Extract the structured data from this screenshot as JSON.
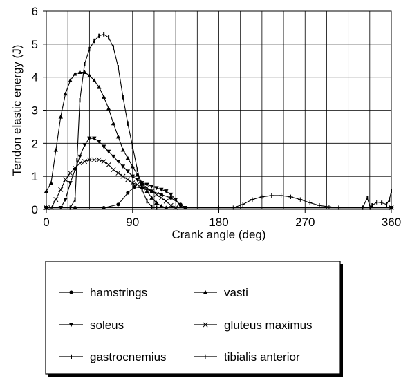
{
  "chart_data": {
    "type": "line",
    "title": "",
    "xlabel": "Crank angle (deg)",
    "ylabel": "Tendon elastic energy (J)",
    "xlim": [
      0,
      360
    ],
    "ylim": [
      0,
      6
    ],
    "xticks": [
      0,
      90,
      180,
      270,
      360
    ],
    "yticks": [
      0,
      1,
      2,
      3,
      4,
      5,
      6
    ],
    "grid": true,
    "legend_position": "bottom",
    "series": [
      {
        "name": "hamstrings",
        "marker": "circle",
        "points": [
          [
            0,
            0.05
          ],
          [
            30,
            0.05
          ],
          [
            60,
            0.05
          ],
          [
            75,
            0.15
          ],
          [
            85,
            0.5
          ],
          [
            92,
            0.68
          ],
          [
            100,
            0.65
          ],
          [
            110,
            0.55
          ],
          [
            120,
            0.45
          ],
          [
            130,
            0.35
          ],
          [
            140,
            0.15
          ],
          [
            145,
            0.05
          ],
          [
            360,
            0.05
          ]
        ]
      },
      {
        "name": "vasti",
        "marker": "triangle-up",
        "points": [
          [
            0,
            0.55
          ],
          [
            5,
            0.8
          ],
          [
            10,
            1.8
          ],
          [
            15,
            2.8
          ],
          [
            20,
            3.5
          ],
          [
            25,
            3.9
          ],
          [
            30,
            4.1
          ],
          [
            35,
            4.15
          ],
          [
            40,
            4.15
          ],
          [
            45,
            4.05
          ],
          [
            50,
            3.9
          ],
          [
            55,
            3.7
          ],
          [
            60,
            3.4
          ],
          [
            65,
            3.05
          ],
          [
            70,
            2.6
          ],
          [
            75,
            2.2
          ],
          [
            80,
            1.8
          ],
          [
            85,
            1.55
          ],
          [
            90,
            1.3
          ],
          [
            95,
            1.05
          ],
          [
            100,
            0.8
          ],
          [
            105,
            0.55
          ],
          [
            110,
            0.35
          ],
          [
            115,
            0.2
          ],
          [
            120,
            0.1
          ],
          [
            125,
            0.05
          ],
          [
            360,
            0.05
          ]
        ]
      },
      {
        "name": "soleus",
        "marker": "triangle-down",
        "points": [
          [
            0,
            0.05
          ],
          [
            15,
            0.05
          ],
          [
            20,
            0.3
          ],
          [
            25,
            0.8
          ],
          [
            30,
            1.2
          ],
          [
            35,
            1.6
          ],
          [
            40,
            1.95
          ],
          [
            45,
            2.15
          ],
          [
            50,
            2.15
          ],
          [
            55,
            2.05
          ],
          [
            60,
            1.9
          ],
          [
            65,
            1.75
          ],
          [
            70,
            1.6
          ],
          [
            75,
            1.45
          ],
          [
            80,
            1.3
          ],
          [
            85,
            1.15
          ],
          [
            90,
            1.0
          ],
          [
            95,
            0.9
          ],
          [
            100,
            0.8
          ],
          [
            105,
            0.75
          ],
          [
            110,
            0.7
          ],
          [
            115,
            0.65
          ],
          [
            120,
            0.6
          ],
          [
            125,
            0.55
          ],
          [
            130,
            0.45
          ],
          [
            135,
            0.3
          ],
          [
            140,
            0.1
          ],
          [
            145,
            0.05
          ],
          [
            360,
            0.05
          ]
        ]
      },
      {
        "name": "gluteus maximus",
        "marker": "x",
        "points": [
          [
            0,
            0.05
          ],
          [
            5,
            0.05
          ],
          [
            10,
            0.3
          ],
          [
            15,
            0.6
          ],
          [
            20,
            0.9
          ],
          [
            25,
            1.1
          ],
          [
            30,
            1.25
          ],
          [
            35,
            1.4
          ],
          [
            40,
            1.45
          ],
          [
            45,
            1.5
          ],
          [
            50,
            1.5
          ],
          [
            55,
            1.5
          ],
          [
            60,
            1.45
          ],
          [
            65,
            1.35
          ],
          [
            70,
            1.2
          ],
          [
            75,
            1.1
          ],
          [
            80,
            1.0
          ],
          [
            85,
            0.9
          ],
          [
            90,
            0.8
          ],
          [
            95,
            0.75
          ],
          [
            100,
            0.7
          ],
          [
            105,
            0.65
          ],
          [
            110,
            0.55
          ],
          [
            115,
            0.45
          ],
          [
            120,
            0.35
          ],
          [
            125,
            0.25
          ],
          [
            130,
            0.12
          ],
          [
            135,
            0.05
          ],
          [
            360,
            0.05
          ]
        ]
      },
      {
        "name": "gastrocnemius",
        "marker": "dash",
        "points": [
          [
            0,
            0.05
          ],
          [
            25,
            0.05
          ],
          [
            30,
            0.3
          ],
          [
            32,
            1.5
          ],
          [
            35,
            3.3
          ],
          [
            40,
            4.4
          ],
          [
            45,
            4.85
          ],
          [
            50,
            5.1
          ],
          [
            55,
            5.25
          ],
          [
            60,
            5.3
          ],
          [
            65,
            5.2
          ],
          [
            70,
            4.9
          ],
          [
            75,
            4.3
          ],
          [
            80,
            3.4
          ],
          [
            85,
            2.6
          ],
          [
            90,
            1.9
          ],
          [
            95,
            1.2
          ],
          [
            100,
            0.6
          ],
          [
            105,
            0.25
          ],
          [
            110,
            0.08
          ],
          [
            115,
            0.05
          ],
          [
            330,
            0.05
          ],
          [
            335,
            0.35
          ],
          [
            338,
            0.05
          ],
          [
            340,
            0.12
          ],
          [
            345,
            0.22
          ],
          [
            350,
            0.2
          ],
          [
            355,
            0.15
          ],
          [
            358,
            0.3
          ],
          [
            360,
            0.55
          ]
        ]
      },
      {
        "name": "tibialis anterior",
        "marker": "plus",
        "points": [
          [
            0,
            0.05
          ],
          [
            180,
            0.05
          ],
          [
            195,
            0.05
          ],
          [
            205,
            0.15
          ],
          [
            215,
            0.3
          ],
          [
            225,
            0.38
          ],
          [
            235,
            0.42
          ],
          [
            245,
            0.42
          ],
          [
            255,
            0.38
          ],
          [
            265,
            0.3
          ],
          [
            275,
            0.2
          ],
          [
            285,
            0.12
          ],
          [
            295,
            0.08
          ],
          [
            305,
            0.05
          ],
          [
            360,
            0.05
          ]
        ]
      }
    ]
  }
}
